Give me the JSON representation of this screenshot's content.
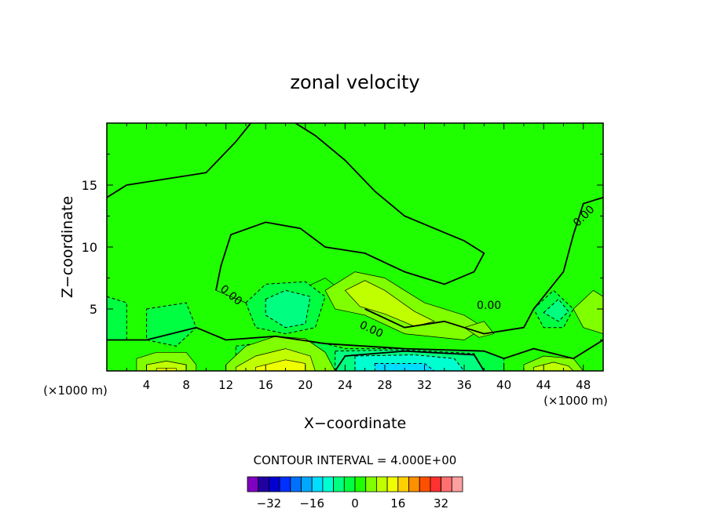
{
  "chart_data": {
    "type": "heatmap",
    "title": "zonal velocity",
    "xlabel": "X−coordinate",
    "ylabel": "Z−coordinate",
    "x_unit_left": "(×1000 m)",
    "x_unit_right": "(×1000 m)",
    "xlim": [
      0,
      50
    ],
    "ylim": [
      0,
      20
    ],
    "x_ticks": [
      4,
      8,
      12,
      16,
      20,
      24,
      28,
      32,
      36,
      40,
      44,
      48
    ],
    "y_ticks": [
      5,
      10,
      15
    ],
    "contour_interval_text": "CONTOUR INTERVAL = 4.000E+00",
    "contour_labels": [
      "0.00",
      "0.00",
      "0.00",
      "0.00"
    ],
    "colorbar": {
      "levels": [
        -36,
        -32,
        -28,
        -24,
        -20,
        -16,
        -12,
        -8,
        -4,
        0,
        4,
        8,
        12,
        16,
        20,
        24,
        28,
        32,
        36
      ],
      "colors": [
        "#8000c0",
        "#2000a0",
        "#0000d0",
        "#0030ff",
        "#0070ff",
        "#00a8ff",
        "#00ddff",
        "#00ffd0",
        "#00ff80",
        "#00ff40",
        "#20ff00",
        "#80ff00",
        "#c0ff00",
        "#f0ff00",
        "#ffd000",
        "#ff9000",
        "#ff5000",
        "#ff3030",
        "#ff7070",
        "#ffa0a0"
      ],
      "tick_labels": [
        "−32",
        "−16",
        "0",
        "16",
        "32"
      ],
      "tick_values": [
        -32,
        -16,
        0,
        16,
        32
      ]
    },
    "regions": [
      {
        "value": 2,
        "polygon": [
          [
            0,
            20
          ],
          [
            0,
            14
          ],
          [
            2,
            15
          ],
          [
            6,
            15.5
          ],
          [
            10,
            16
          ],
          [
            13,
            18.5
          ],
          [
            14.5,
            20
          ]
        ]
      },
      {
        "value": 2,
        "polygon": [
          [
            19,
            20
          ],
          [
            21,
            19
          ],
          [
            24,
            17
          ],
          [
            27,
            14.5
          ],
          [
            30,
            12.5
          ],
          [
            33,
            11.5
          ],
          [
            36,
            10.5
          ],
          [
            38,
            9.5
          ],
          [
            37,
            8
          ],
          [
            34,
            7
          ],
          [
            30,
            8
          ],
          [
            26,
            9.5
          ],
          [
            22,
            10
          ],
          [
            19.5,
            11.5
          ],
          [
            16,
            12
          ],
          [
            12.5,
            11
          ],
          [
            11.5,
            8.5
          ],
          [
            11,
            6.5
          ],
          [
            14,
            5.5
          ],
          [
            18,
            6
          ],
          [
            22,
            7.5
          ],
          [
            26,
            5
          ],
          [
            30,
            3.5
          ],
          [
            34,
            4
          ],
          [
            38,
            3
          ],
          [
            42,
            3.5
          ],
          [
            43,
            5
          ],
          [
            46,
            8
          ],
          [
            47,
            11
          ],
          [
            48,
            13.5
          ],
          [
            50,
            14
          ],
          [
            50,
            20
          ]
        ]
      },
      {
        "value": -2,
        "polygon": [
          [
            0,
            6
          ],
          [
            2,
            5.5
          ],
          [
            2,
            2.5
          ],
          [
            0,
            2.5
          ]
        ]
      },
      {
        "value": -2,
        "polygon": [
          [
            4,
            5
          ],
          [
            8,
            5.5
          ],
          [
            9,
            3.5
          ],
          [
            7,
            2
          ],
          [
            4,
            2.5
          ]
        ]
      },
      {
        "value": -2,
        "polygon": [
          [
            14,
            5.5
          ],
          [
            16,
            7
          ],
          [
            20,
            7.2
          ],
          [
            22,
            6
          ],
          [
            21,
            3.5
          ],
          [
            18,
            3
          ],
          [
            15,
            3.5
          ]
        ]
      },
      {
        "value": -6,
        "polygon": [
          [
            16,
            5.8
          ],
          [
            18,
            6.5
          ],
          [
            20.5,
            6
          ],
          [
            20,
            3.8
          ],
          [
            18,
            3.5
          ],
          [
            16,
            4.5
          ]
        ]
      },
      {
        "value": -2,
        "polygon": [
          [
            43,
            5
          ],
          [
            45,
            6.5
          ],
          [
            47,
            5
          ],
          [
            46,
            3.5
          ],
          [
            44,
            3.5
          ]
        ]
      },
      {
        "value": -6,
        "polygon": [
          [
            44,
            4.7
          ],
          [
            45.5,
            5.8
          ],
          [
            46.5,
            4.8
          ],
          [
            45.5,
            4
          ]
        ]
      },
      {
        "value": -2,
        "polygon": [
          [
            13,
            2
          ],
          [
            18,
            2.5
          ],
          [
            22,
            2.2
          ],
          [
            24,
            1.8
          ],
          [
            30,
            1.8
          ],
          [
            38,
            1.6
          ],
          [
            40,
            1
          ],
          [
            40,
            0
          ],
          [
            13,
            0
          ]
        ]
      },
      {
        "value": -6,
        "polygon": [
          [
            23,
            1.6
          ],
          [
            30,
            1.7
          ],
          [
            37,
            1.4
          ],
          [
            38,
            0
          ],
          [
            23,
            0
          ]
        ]
      },
      {
        "value": -10,
        "polygon": [
          [
            25,
            1.2
          ],
          [
            31,
            1.3
          ],
          [
            35,
            1
          ],
          [
            36,
            0
          ],
          [
            25,
            0
          ]
        ]
      },
      {
        "value": -14,
        "polygon": [
          [
            27,
            0.6
          ],
          [
            32,
            0.6
          ],
          [
            33,
            0
          ],
          [
            27,
            0
          ]
        ]
      },
      {
        "value": 6,
        "polygon": [
          [
            22,
            6.5
          ],
          [
            25,
            8
          ],
          [
            28,
            7.5
          ],
          [
            32,
            5.5
          ],
          [
            36,
            4.5
          ],
          [
            38,
            3.5
          ],
          [
            36,
            2.5
          ],
          [
            30,
            3
          ],
          [
            26,
            4.5
          ],
          [
            23,
            5
          ]
        ]
      },
      {
        "value": 10,
        "polygon": [
          [
            24,
            6.5
          ],
          [
            26,
            7.3
          ],
          [
            28,
            6.5
          ],
          [
            31,
            4.8
          ],
          [
            33,
            4
          ],
          [
            31,
            3.6
          ],
          [
            28,
            4.6
          ],
          [
            25.5,
            5.2
          ]
        ]
      },
      {
        "value": 6,
        "polygon": [
          [
            36,
            3.5
          ],
          [
            38,
            4
          ],
          [
            39,
            3
          ],
          [
            37.5,
            2.7
          ]
        ]
      },
      {
        "value": 6,
        "polygon": [
          [
            3,
            1
          ],
          [
            5,
            1.5
          ],
          [
            8,
            1.5
          ],
          [
            9,
            0.5
          ],
          [
            9,
            0
          ],
          [
            3,
            0
          ]
        ]
      },
      {
        "value": 10,
        "polygon": [
          [
            4,
            0.5
          ],
          [
            6,
            0.8
          ],
          [
            8,
            0.5
          ],
          [
            8,
            0
          ],
          [
            4,
            0
          ]
        ]
      },
      {
        "value": 14,
        "polygon": [
          [
            5,
            0.2
          ],
          [
            7,
            0.2
          ],
          [
            7,
            0
          ],
          [
            5,
            0
          ]
        ]
      },
      {
        "value": 6,
        "polygon": [
          [
            12,
            0.5
          ],
          [
            14,
            2
          ],
          [
            17,
            2.8
          ],
          [
            20,
            2.6
          ],
          [
            22,
            1.5
          ],
          [
            23,
            0
          ],
          [
            12,
            0
          ]
        ]
      },
      {
        "value": 10,
        "polygon": [
          [
            13,
            0.3
          ],
          [
            15,
            1.2
          ],
          [
            18,
            1.8
          ],
          [
            20.5,
            1.2
          ],
          [
            21,
            0
          ],
          [
            13,
            0
          ]
        ]
      },
      {
        "value": 14,
        "polygon": [
          [
            15,
            0.3
          ],
          [
            18,
            0.9
          ],
          [
            20,
            0.6
          ],
          [
            20,
            0
          ],
          [
            15,
            0
          ]
        ]
      },
      {
        "value": 6,
        "polygon": [
          [
            42,
            0.5
          ],
          [
            44,
            1.2
          ],
          [
            47,
            1
          ],
          [
            48,
            0
          ],
          [
            42,
            0
          ]
        ]
      },
      {
        "value": 10,
        "polygon": [
          [
            43,
            0.3
          ],
          [
            45,
            0.7
          ],
          [
            46.5,
            0.4
          ],
          [
            47,
            0
          ],
          [
            43,
            0
          ]
        ]
      },
      {
        "value": 6,
        "polygon": [
          [
            47,
            5
          ],
          [
            49,
            6.5
          ],
          [
            50,
            6
          ],
          [
            50,
            3
          ],
          [
            48,
            3.5
          ]
        ]
      }
    ],
    "zero_contours": [
      [
        [
          0,
          14
        ],
        [
          2,
          15
        ],
        [
          6,
          15.5
        ],
        [
          10,
          16
        ],
        [
          13,
          18.5
        ],
        [
          14.5,
          20
        ]
      ],
      [
        [
          19,
          20
        ],
        [
          21,
          19
        ],
        [
          24,
          17
        ],
        [
          27,
          14.5
        ],
        [
          30,
          12.5
        ],
        [
          33,
          11.5
        ],
        [
          36,
          10.5
        ],
        [
          38,
          9.5
        ],
        [
          37,
          8
        ],
        [
          34,
          7
        ],
        [
          30,
          8
        ],
        [
          26,
          9.5
        ],
        [
          22,
          10
        ],
        [
          19.5,
          11.5
        ],
        [
          16,
          12
        ],
        [
          12.5,
          11
        ],
        [
          11.5,
          8.5
        ],
        [
          11,
          6.5
        ]
      ],
      [
        [
          26,
          5
        ],
        [
          30,
          3.5
        ],
        [
          34,
          4
        ],
        [
          38,
          3
        ],
        [
          42,
          3.5
        ],
        [
          43,
          5
        ],
        [
          46,
          8
        ],
        [
          47,
          11
        ],
        [
          48,
          13.5
        ],
        [
          50,
          14
        ]
      ],
      [
        [
          0,
          2.5
        ],
        [
          4,
          2.5
        ],
        [
          9,
          3.5
        ],
        [
          12,
          2.5
        ],
        [
          17,
          2.8
        ],
        [
          22,
          2.2
        ],
        [
          30,
          1.8
        ],
        [
          38,
          1.6
        ],
        [
          40,
          1
        ],
        [
          43,
          1.8
        ],
        [
          47,
          1
        ],
        [
          50,
          2.5
        ]
      ],
      [
        [
          23,
          0
        ],
        [
          24,
          1.2
        ],
        [
          30,
          1.6
        ],
        [
          37,
          1.3
        ],
        [
          38,
          0
        ]
      ]
    ],
    "label_positions": [
      {
        "text_index": 0,
        "x": 48.3,
        "y": 12.3,
        "angle": -45
      },
      {
        "text_index": 1,
        "x": 12.3,
        "y": 5.9,
        "angle": 40
      },
      {
        "text_index": 2,
        "x": 38.5,
        "y": 5.0,
        "angle": 0
      },
      {
        "text_index": 3,
        "x": 26.5,
        "y": 3.1,
        "angle": 25
      }
    ],
    "background_value": 2
  }
}
